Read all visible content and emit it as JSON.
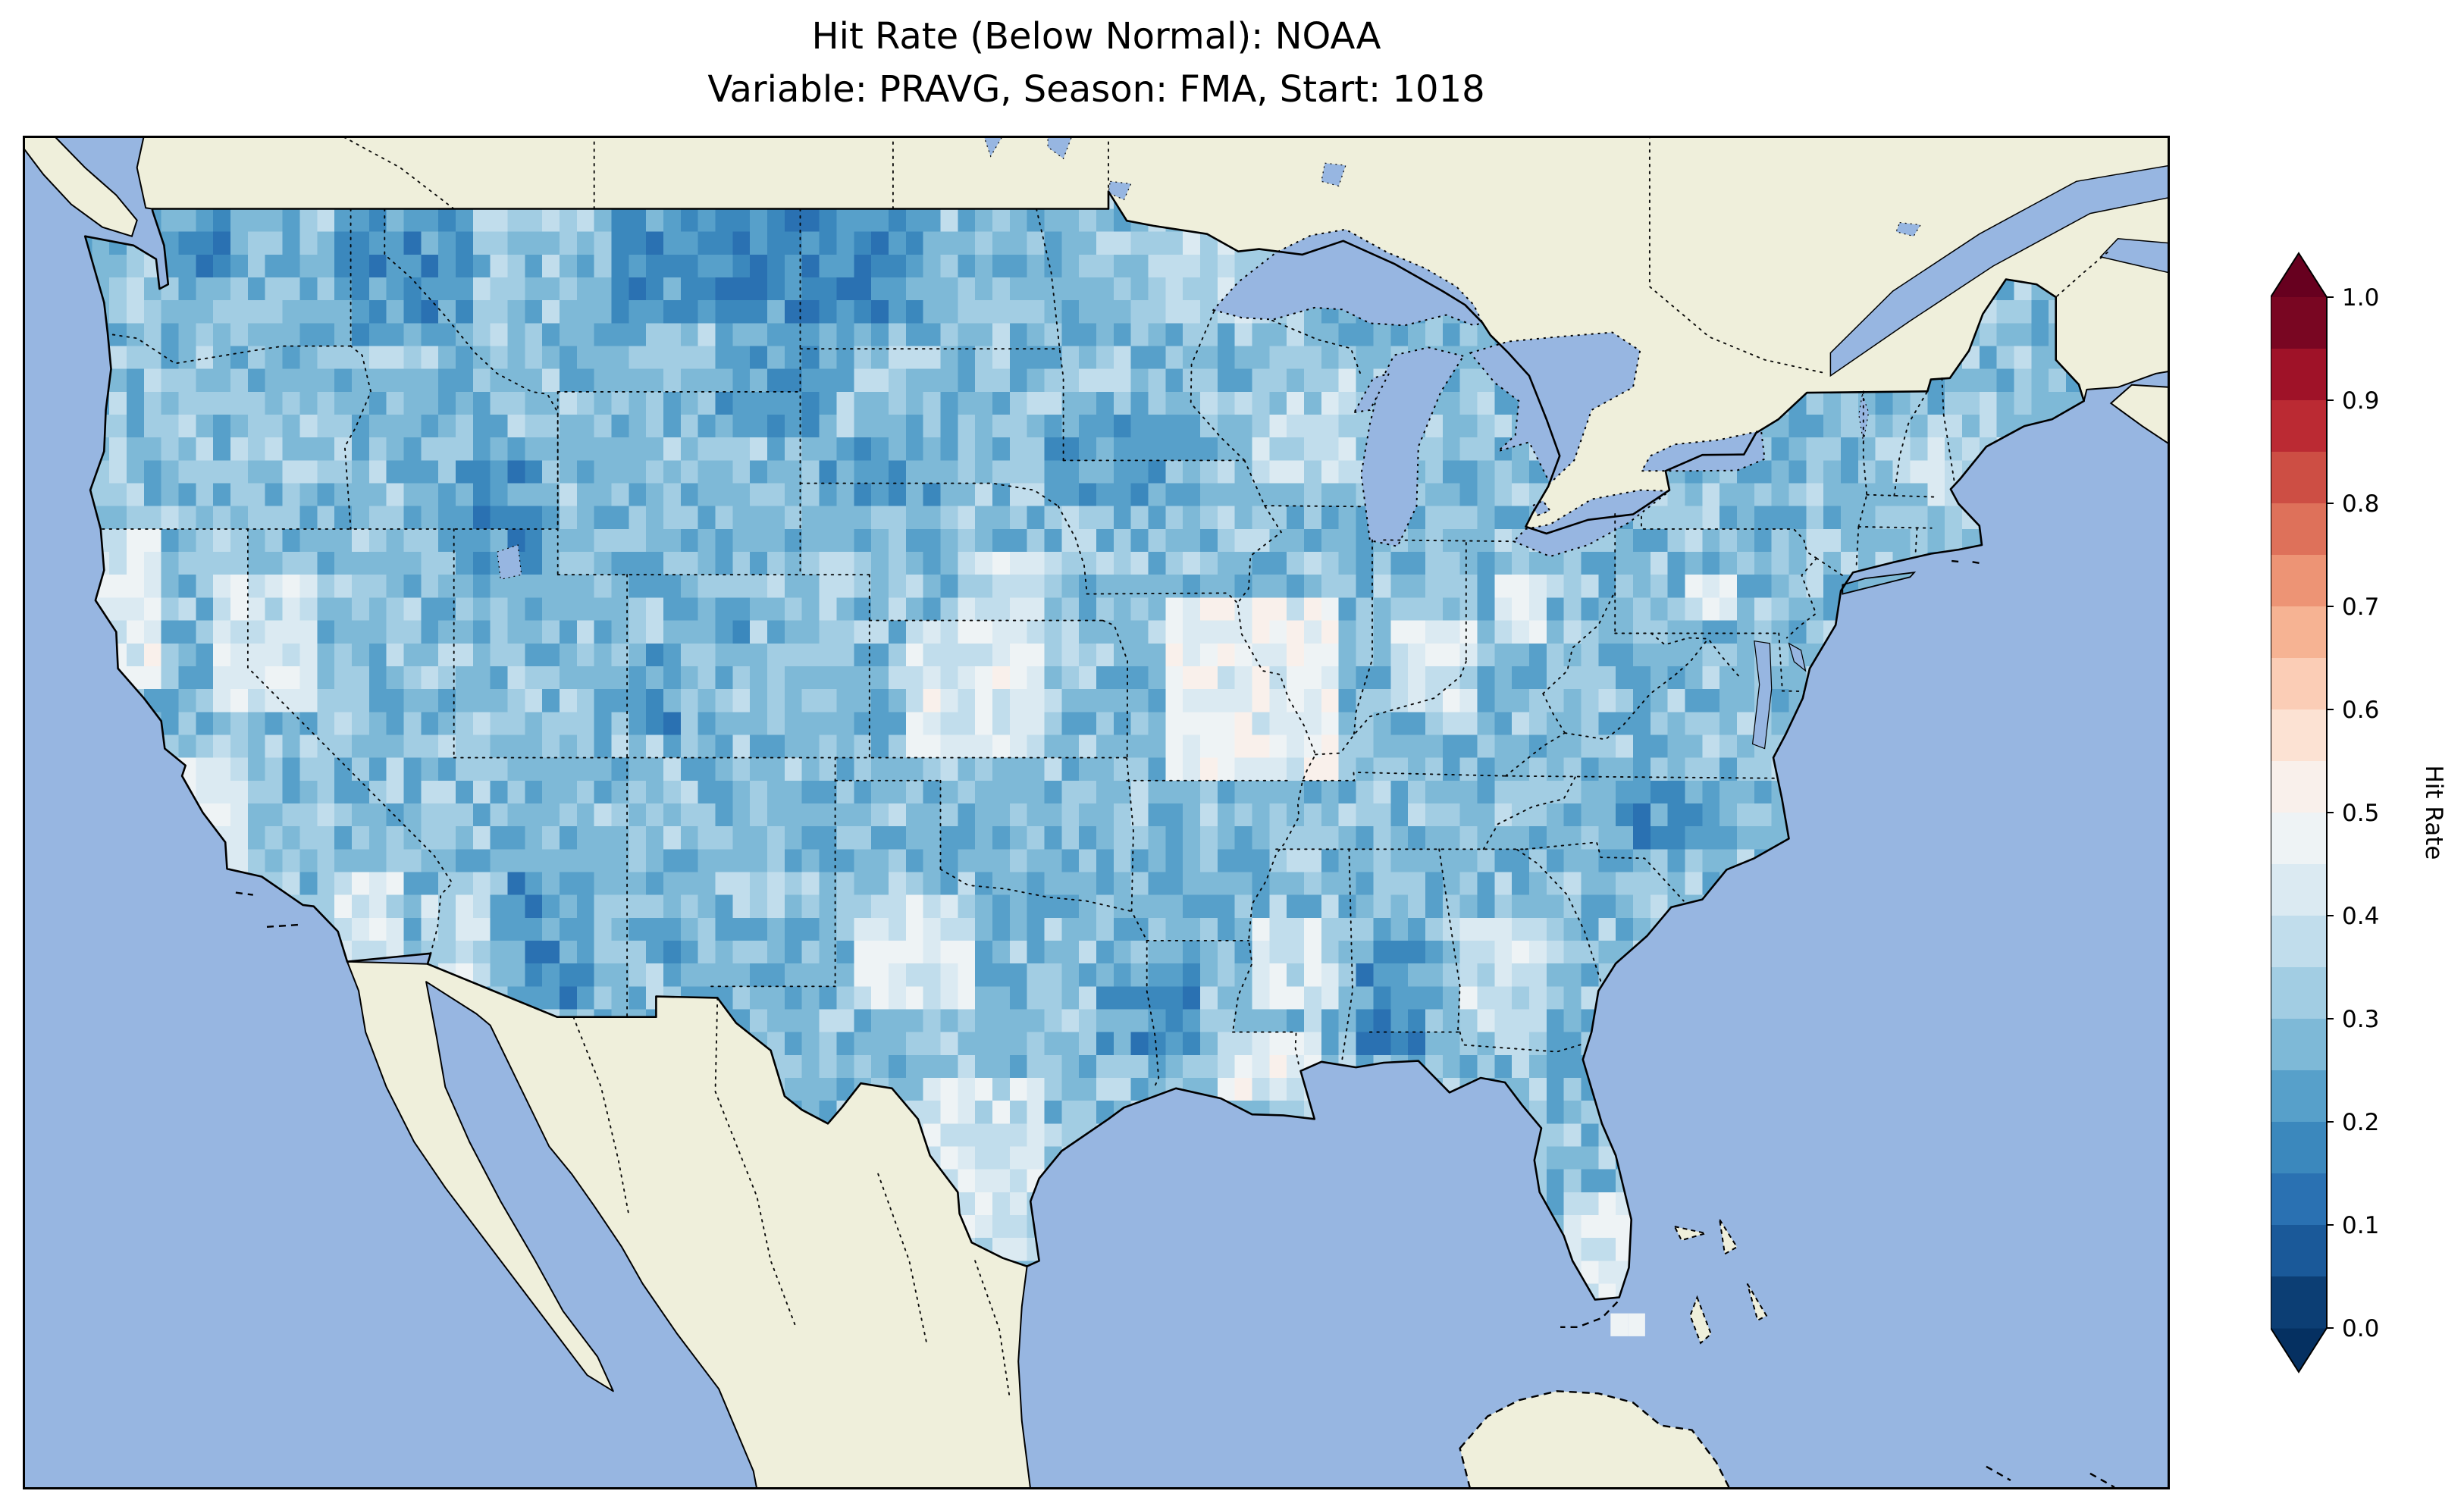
{
  "figure": {
    "title_line1": "Hit Rate (Below Normal): NOAA",
    "title_line2": "Variable: PRAVG, Season: FMA, Start: 1018",
    "background": "#ffffff"
  },
  "map": {
    "ocean_color": "#97b6e1",
    "land_color": "#efefdb",
    "lake_color": "#97b6e1",
    "coastline_color": "#000000",
    "state_border_style": "dotted"
  },
  "colorbar": {
    "label": "Hit Rate",
    "orientation": "vertical",
    "colormap": "RdBu_r",
    "extend": "both",
    "ticks": [
      "0.0",
      "0.1",
      "0.2",
      "0.3",
      "0.4",
      "0.5",
      "0.6",
      "0.7",
      "0.8",
      "0.9",
      "1.0"
    ],
    "band_colors": [
      "#0c3e74",
      "#1a5999",
      "#2a71b2",
      "#3b88bd",
      "#57a0ca",
      "#7eb9d7",
      "#a2cde3",
      "#c1ddec",
      "#dbeaf2",
      "#eef3f5",
      "#f9f0eb",
      "#fce2d3",
      "#fbcdb6",
      "#f6b393",
      "#ed9475",
      "#de715a",
      "#cd4e44",
      "#bb2a33",
      "#9f1228",
      "#790622"
    ],
    "under_color": "#053061",
    "over_color": "#67001f"
  },
  "chart_data": {
    "type": "heatmap",
    "title": "Hit Rate (Below Normal): NOAA",
    "variable": "PRAVG",
    "season": "FMA",
    "start": "1018",
    "value_name": "Hit Rate",
    "value_range": [
      0,
      1
    ],
    "level_step": 0.05,
    "resolution_deg": 0.5,
    "region": "CONUS",
    "base_value": 0.33,
    "patches": [
      {
        "name": "north-ca-coast",
        "lon": [
          -124.6,
          -122.6
        ],
        "lat": [
          38.3,
          41.8
        ],
        "value": 0.47
      },
      {
        "name": "nv-ca-basin",
        "lon": [
          -120.8,
          -117.8
        ],
        "lat": [
          37.8,
          41.2
        ],
        "value": 0.44
      },
      {
        "name": "central-ca-coast",
        "lon": [
          -122.3,
          -120.2
        ],
        "lat": [
          34.6,
          36.8
        ],
        "value": 0.46
      },
      {
        "name": "socal",
        "lon": [
          -117.5,
          -115.3
        ],
        "lat": [
          32.6,
          34.6
        ],
        "value": 0.44
      },
      {
        "name": "sw-arizona",
        "lon": [
          -115.2,
          -113.2
        ],
        "lat": [
          32.2,
          33.8
        ],
        "value": 0.42
      },
      {
        "name": "kansas",
        "lon": [
          -101.0,
          -96.8
        ],
        "lat": [
          37.2,
          40.0
        ],
        "value": 0.48
      },
      {
        "name": "nebraska-east",
        "lon": [
          -99.5,
          -96.8
        ],
        "lat": [
          40.0,
          41.6
        ],
        "value": 0.43
      },
      {
        "name": "missouri-illinois",
        "lon": [
          -93.3,
          -88.3
        ],
        "lat": [
          36.6,
          40.6
        ],
        "value": 0.5
      },
      {
        "name": "west-texas",
        "lon": [
          -102.5,
          -99.0
        ],
        "lat": [
          31.6,
          34.2
        ],
        "value": 0.45
      },
      {
        "name": "south-texas",
        "lon": [
          -100.3,
          -97.2
        ],
        "lat": [
          26.2,
          29.8
        ],
        "value": 0.45
      },
      {
        "name": "coastal-la-ms",
        "lon": [
          -91.8,
          -88.9
        ],
        "lat": [
          29.4,
          31.2
        ],
        "value": 0.47
      },
      {
        "name": "mid-mississippi",
        "lon": [
          -90.8,
          -88.7
        ],
        "lat": [
          31.3,
          33.6
        ],
        "value": 0.44
      },
      {
        "name": "south-florida",
        "lon": [
          -82.2,
          -80.1
        ],
        "lat": [
          24.8,
          27.4
        ],
        "value": 0.48
      },
      {
        "name": "ohio-valley",
        "lon": [
          -86.8,
          -84.3
        ],
        "lat": [
          37.8,
          39.8
        ],
        "value": 0.44
      },
      {
        "name": "central-ohio",
        "lon": [
          -83.8,
          -82.4
        ],
        "lat": [
          39.7,
          41.1
        ],
        "value": 0.47
      },
      {
        "name": "central-pa",
        "lon": [
          -78.3,
          -76.9
        ],
        "lat": [
          40.2,
          41.2
        ],
        "value": 0.46
      },
      {
        "name": "wisconsin",
        "lon": [
          -90.8,
          -87.9
        ],
        "lat": [
          42.9,
          45.7
        ],
        "value": 0.4
      },
      {
        "name": "ne-minnesota",
        "lon": [
          -93.5,
          -89.8
        ],
        "lat": [
          46.3,
          48.6
        ],
        "value": 0.4
      },
      {
        "name": "new-england",
        "lon": [
          -72.6,
          -68.9
        ],
        "lat": [
          41.8,
          44.6
        ],
        "value": 0.4
      },
      {
        "name": "georgia",
        "lon": [
          -84.8,
          -82.4
        ],
        "lat": [
          31.2,
          33.4
        ],
        "value": 0.42
      },
      {
        "name": "north-cascades",
        "lon": [
          -122.6,
          -119.8
        ],
        "lat": [
          47.5,
          49.0
        ],
        "value": 0.24
      },
      {
        "name": "idaho-panhandle",
        "lon": [
          -117.6,
          -113.7
        ],
        "lat": [
          45.8,
          49.0
        ],
        "value": 0.24
      },
      {
        "name": "east-montana-dakotas",
        "lon": [
          -109.3,
          -100.6
        ],
        "lat": [
          46.3,
          49.0
        ],
        "value": 0.23
      },
      {
        "name": "montana-core",
        "lon": [
          -106.5,
          -102.5
        ],
        "lat": [
          47.2,
          48.8
        ],
        "value": 0.21
      },
      {
        "name": "ne-wyoming",
        "lon": [
          -106.3,
          -103.0
        ],
        "lat": [
          44.2,
          46.3
        ],
        "value": 0.26
      },
      {
        "name": "south-dakota",
        "lon": [
          -103.5,
          -99.8
        ],
        "lat": [
          42.5,
          43.8
        ],
        "value": 0.27
      },
      {
        "name": "minnesota-iowa",
        "lon": [
          -96.8,
          -93.6
        ],
        "lat": [
          42.5,
          44.4
        ],
        "value": 0.26
      },
      {
        "name": "utah-idaho",
        "lon": [
          -113.9,
          -111.7
        ],
        "lat": [
          41.0,
          43.3
        ],
        "value": 0.25
      },
      {
        "name": "west-colorado",
        "lon": [
          -109.2,
          -107.5
        ],
        "lat": [
          37.3,
          39.3
        ],
        "value": 0.25
      },
      {
        "name": "north-colorado",
        "lon": [
          -106.6,
          -105.4
        ],
        "lat": [
          39.4,
          40.6
        ],
        "value": 0.28
      },
      {
        "name": "se-arizona",
        "lon": [
          -112.4,
          -110.2
        ],
        "lat": [
          31.5,
          34.7
        ],
        "value": 0.25
      },
      {
        "name": "sw-new-mexico",
        "lon": [
          -108.9,
          -107.5
        ],
        "lat": [
          32.3,
          33.6
        ],
        "value": 0.27
      },
      {
        "name": "etx-nw-la",
        "lon": [
          -95.5,
          -92.5
        ],
        "lat": [
          30.6,
          32.3
        ],
        "value": 0.25
      },
      {
        "name": "south-alabama",
        "lon": [
          -87.9,
          -86.1
        ],
        "lat": [
          30.6,
          33.2
        ],
        "value": 0.25
      },
      {
        "name": "nc-va",
        "lon": [
          -80.6,
          -77.4
        ],
        "lat": [
          34.9,
          36.7
        ],
        "value": 0.25
      },
      {
        "name": "ne-florida-coast",
        "lon": [
          -82.6,
          -81.0
        ],
        "lat": [
          29.5,
          31.4
        ],
        "value": 0.27
      }
    ],
    "spot_cells": [
      {
        "lon": -80.4,
        "lat": 24.6,
        "value": 0.48
      },
      {
        "lon": -79.9,
        "lat": 24.6,
        "value": 0.48
      }
    ]
  }
}
